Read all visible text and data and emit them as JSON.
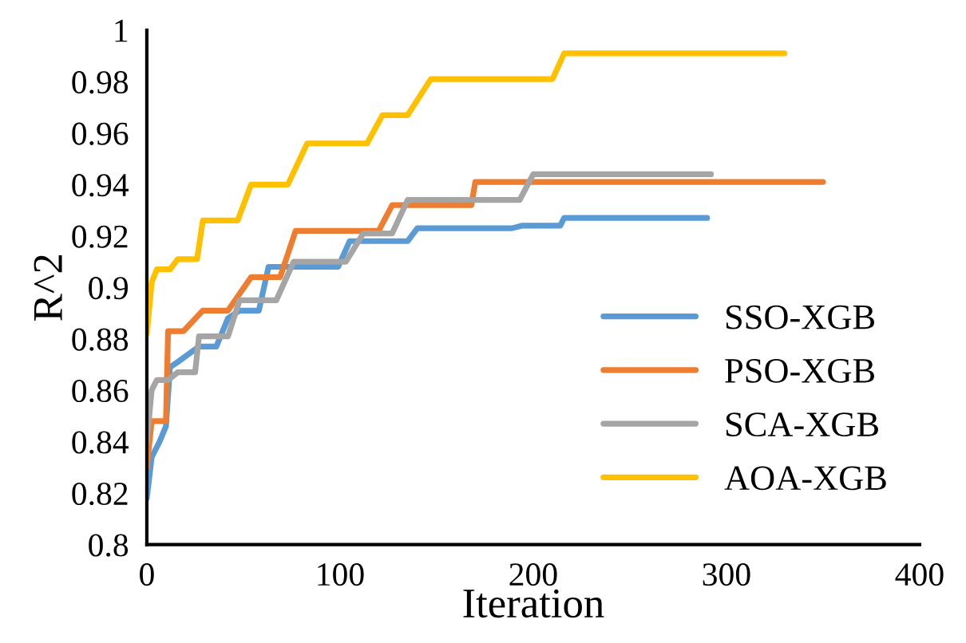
{
  "chart_data": {
    "type": "line",
    "xlabel": "Iteration",
    "ylabel": "R^2",
    "xlim": [
      0,
      400
    ],
    "xticks": [
      0,
      100,
      200,
      300,
      400
    ],
    "ylim": [
      0.8,
      1
    ],
    "yticks": [
      0.8,
      0.82,
      0.84,
      0.86,
      0.88,
      0.9,
      0.92,
      0.94,
      0.96,
      0.98,
      1
    ],
    "grid": false,
    "legend": "bottom right",
    "marker": "none",
    "line_style": "solid",
    "series": [
      {
        "name": "SSO-XGB",
        "color": "#5b9bd5",
        "x": [
          0,
          2.5,
          6.6,
          9.9,
          12,
          16,
          27,
          36,
          42,
          48,
          58,
          63,
          99,
          105,
          135,
          140,
          189,
          194,
          214,
          216,
          290
        ],
        "values": [
          0.818,
          0.834,
          0.84,
          0.846,
          0.869,
          0.871,
          0.877,
          0.877,
          0.888,
          0.891,
          0.891,
          0.908,
          0.908,
          0.918,
          0.918,
          0.923,
          0.923,
          0.924,
          0.924,
          0.927,
          0.927
        ]
      },
      {
        "name": "PSO-XGB",
        "color": "#ed7d31",
        "x": [
          0,
          2.5,
          9.9,
          11,
          19,
          29,
          42,
          54,
          69,
          77,
          120,
          127,
          168,
          170,
          350
        ],
        "values": [
          0.83,
          0.848,
          0.848,
          0.883,
          0.883,
          0.891,
          0.891,
          0.904,
          0.904,
          0.922,
          0.922,
          0.932,
          0.932,
          0.941,
          0.941
        ]
      },
      {
        "name": "SCA-XGB",
        "color": "#a5a5a5",
        "x": [
          0,
          2.5,
          5.2,
          11,
          16,
          25,
          27,
          42,
          48,
          67,
          76,
          103,
          112,
          127,
          135,
          193,
          200,
          292
        ],
        "values": [
          0.84,
          0.86,
          0.864,
          0.864,
          0.867,
          0.867,
          0.881,
          0.881,
          0.895,
          0.895,
          0.91,
          0.91,
          0.921,
          0.921,
          0.934,
          0.934,
          0.944,
          0.944
        ]
      },
      {
        "name": "AOA-XGB",
        "color": "#ffc000",
        "x": [
          0,
          2.5,
          5.2,
          12,
          16,
          26,
          29,
          47,
          54,
          73,
          83,
          114,
          122,
          135,
          147,
          210,
          216,
          330
        ],
        "values": [
          0.882,
          0.902,
          0.907,
          0.907,
          0.911,
          0.911,
          0.926,
          0.926,
          0.94,
          0.94,
          0.956,
          0.956,
          0.967,
          0.967,
          0.981,
          0.981,
          0.991,
          0.991
        ]
      }
    ]
  }
}
